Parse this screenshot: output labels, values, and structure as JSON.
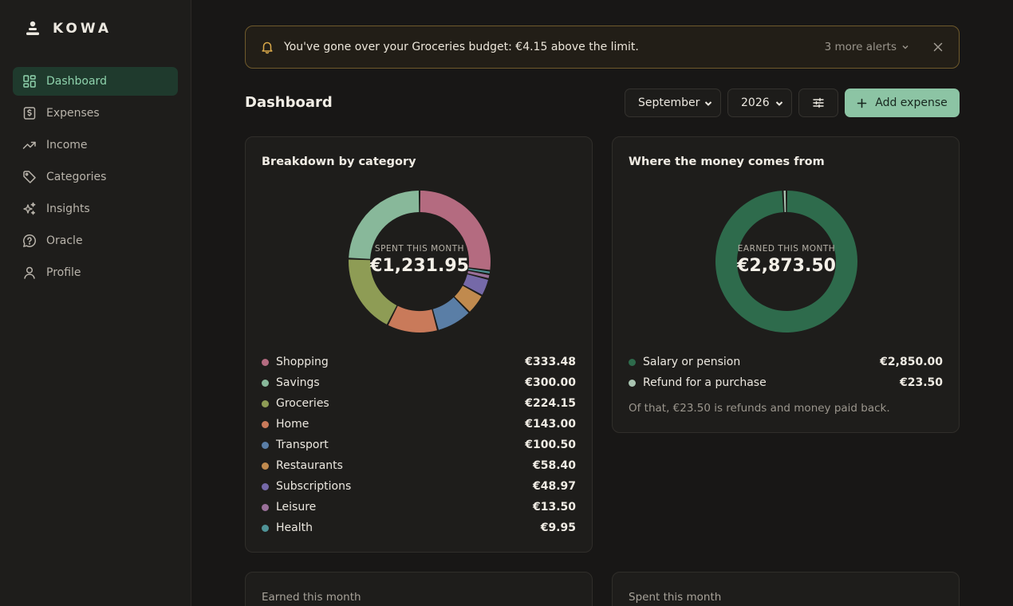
{
  "brand": {
    "name": "KOWA",
    "icon": "person-stack-icon"
  },
  "sidebar": {
    "items": [
      {
        "label": "Dashboard",
        "icon": "grid-icon",
        "active": true
      },
      {
        "label": "Expenses",
        "icon": "dollar-receipt-icon",
        "active": false
      },
      {
        "label": "Income",
        "icon": "trend-up-icon",
        "active": false
      },
      {
        "label": "Categories",
        "icon": "tag-icon",
        "active": false
      },
      {
        "label": "Insights",
        "icon": "sparkles-icon",
        "active": false
      },
      {
        "label": "Oracle",
        "icon": "help-bubble-icon",
        "active": false
      },
      {
        "label": "Profile",
        "icon": "user-icon",
        "active": false
      }
    ]
  },
  "alert": {
    "message": "You've gone over your Groceries budget: €4.15 above the limit.",
    "more_label": "3 more alerts"
  },
  "header": {
    "title": "Dashboard",
    "month": "September",
    "year": "2026",
    "add_label": "Add expense"
  },
  "colors": {
    "accent": "#8cc4a4",
    "shopping": "#b46b80",
    "savings": "#88b89a",
    "groceries": "#8e9c55",
    "home": "#c97a5a",
    "transport": "#5a7ea6",
    "restaurants": "#c08a4e",
    "subscriptions": "#7569a8",
    "leisure": "#9a7099",
    "health": "#4f9397",
    "salary": "#2e6b4c",
    "refund": "#a9c4b1"
  },
  "breakdown": {
    "title": "Breakdown by category",
    "center_label": "SPENT THIS MONTH",
    "total": "€1,231.95",
    "items": [
      {
        "label": "Shopping",
        "amount": "€333.48",
        "value": 333.48,
        "color": "#b46b80"
      },
      {
        "label": "Savings",
        "amount": "€300.00",
        "value": 300.0,
        "color": "#88b89a"
      },
      {
        "label": "Groceries",
        "amount": "€224.15",
        "value": 224.15,
        "color": "#8e9c55"
      },
      {
        "label": "Home",
        "amount": "€143.00",
        "value": 143.0,
        "color": "#c97a5a"
      },
      {
        "label": "Transport",
        "amount": "€100.50",
        "value": 100.5,
        "color": "#5a7ea6"
      },
      {
        "label": "Restaurants",
        "amount": "€58.40",
        "value": 58.4,
        "color": "#c08a4e"
      },
      {
        "label": "Subscriptions",
        "amount": "€48.97",
        "value": 48.97,
        "color": "#7569a8"
      },
      {
        "label": "Leisure",
        "amount": "€13.50",
        "value": 13.5,
        "color": "#9a7099"
      },
      {
        "label": "Health",
        "amount": "€9.95",
        "value": 9.95,
        "color": "#4f9397"
      }
    ],
    "ring_order": [
      "Shopping",
      "Health",
      "Leisure",
      "Subscriptions",
      "Restaurants",
      "Transport",
      "Home",
      "Groceries",
      "Savings"
    ]
  },
  "income": {
    "title": "Where the money comes from",
    "center_label": "EARNED THIS MONTH",
    "total": "€2,873.50",
    "items": [
      {
        "label": "Salary or pension",
        "amount": "€2,850.00",
        "value": 2850.0,
        "color": "#2e6b4c"
      },
      {
        "label": "Refund for a purchase",
        "amount": "€23.50",
        "value": 23.5,
        "color": "#a9c4b1"
      }
    ],
    "note": "Of that, €23.50 is refunds and money paid back."
  },
  "bottom": {
    "earned_label": "Earned this month",
    "spent_label": "Spent this month"
  }
}
